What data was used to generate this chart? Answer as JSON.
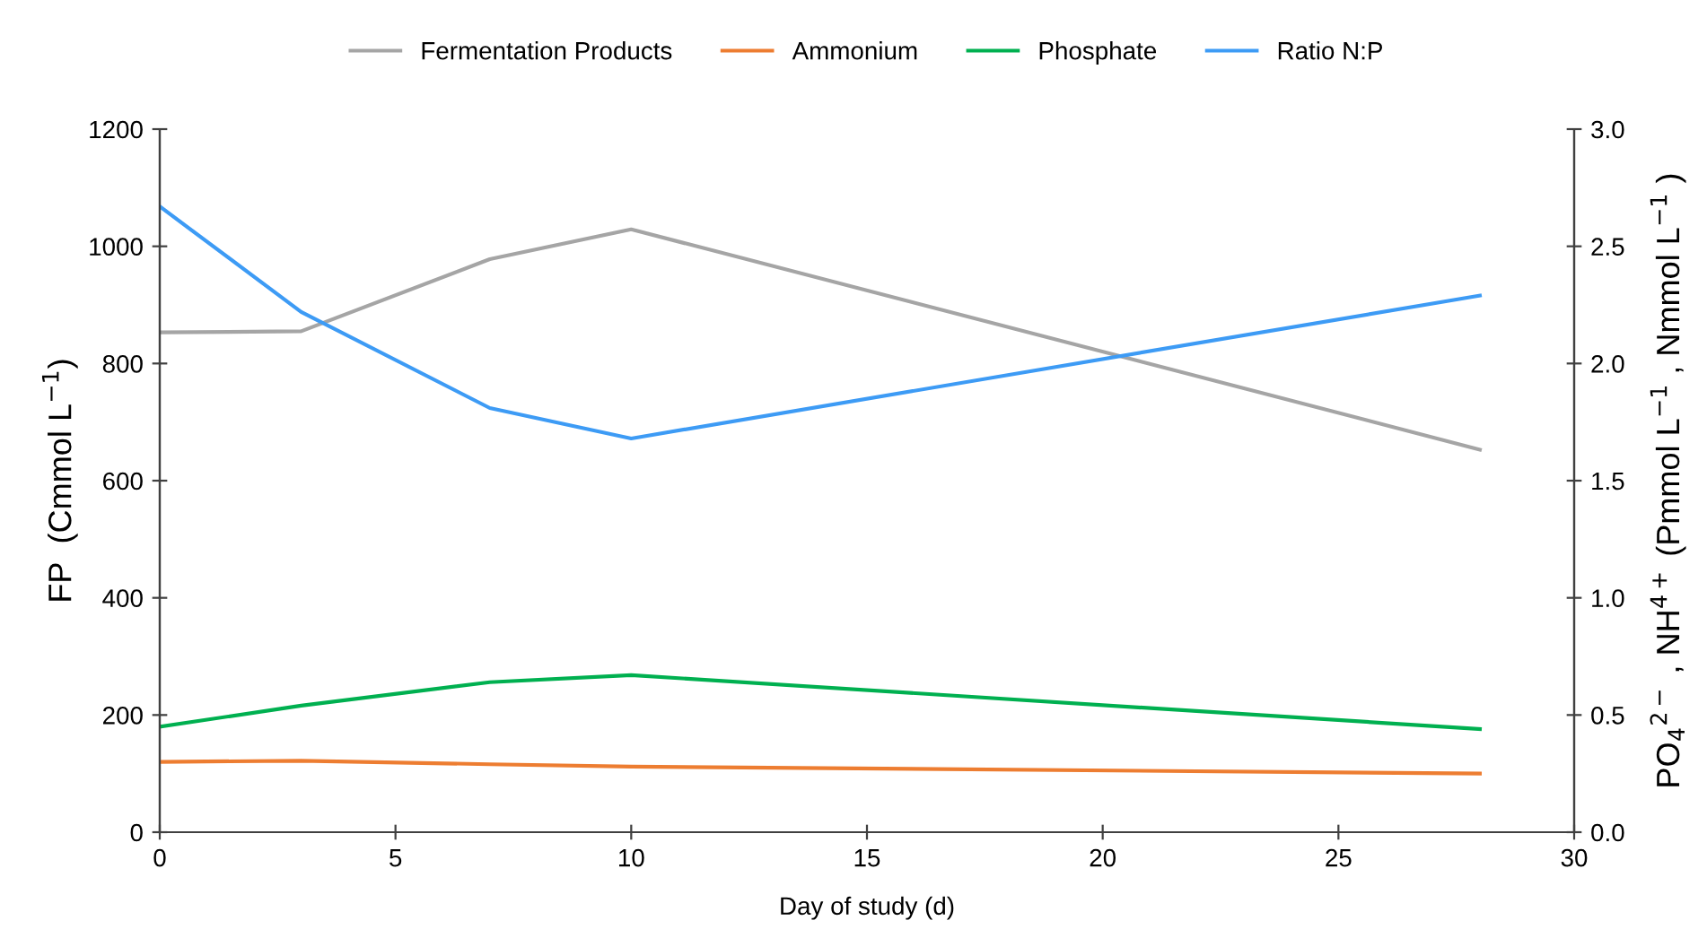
{
  "chart_data": {
    "type": "line",
    "xlabel": "Day of study (d)",
    "ylabel": "FP  (Cmmol L$^{−1}$)",
    "y2label": "PO$_{4}$$^{2−}$ , NH$^{4+}$ (Pmmol L$^{−1}$ , Nmmol L$^{−1}$ )",
    "x": [
      0,
      3,
      7,
      10,
      28
    ],
    "series": [
      {
        "name": "Fermentation Products",
        "color": "#a5a5a5",
        "values": [
          853,
          855,
          978,
          1029,
          653
        ]
      },
      {
        "name": "Ammonium",
        "color": "#ed7d31",
        "axis": "y2",
        "values": [
          0.3,
          0.305,
          0.29,
          0.28,
          0.25
        ]
      },
      {
        "name": "Phosphate",
        "color": "#00b050",
        "axis": "y2",
        "values": [
          0.45,
          0.54,
          0.64,
          0.67,
          0.44
        ]
      },
      {
        "name": "Ratio N:P",
        "color": "#3d9bf5",
        "axis": "y2",
        "values": [
          2.67,
          2.22,
          1.81,
          1.68,
          2.29
        ]
      }
    ],
    "xlim": [
      0,
      30
    ],
    "xticks": [
      0,
      5,
      10,
      15,
      20,
      25,
      30
    ],
    "ylim": [
      0,
      1200
    ],
    "yticks": [
      0,
      200,
      400,
      600,
      800,
      1000,
      1200
    ],
    "y2lim": [
      0,
      3.0
    ],
    "y2ticks": [
      {
        "value": 0,
        "label": "0.0"
      },
      {
        "value": 0.5,
        "label": "0.5"
      },
      {
        "value": 1,
        "label": "1.0"
      },
      {
        "value": 1.5,
        "label": "1.5"
      },
      {
        "value": 2,
        "label": "2.0"
      },
      {
        "value": 2.5,
        "label": "2.5"
      },
      {
        "value": 3,
        "label": "3.0"
      }
    ],
    "grid": false,
    "legend": "top",
    "marker": "none",
    "line_style": "solid"
  }
}
